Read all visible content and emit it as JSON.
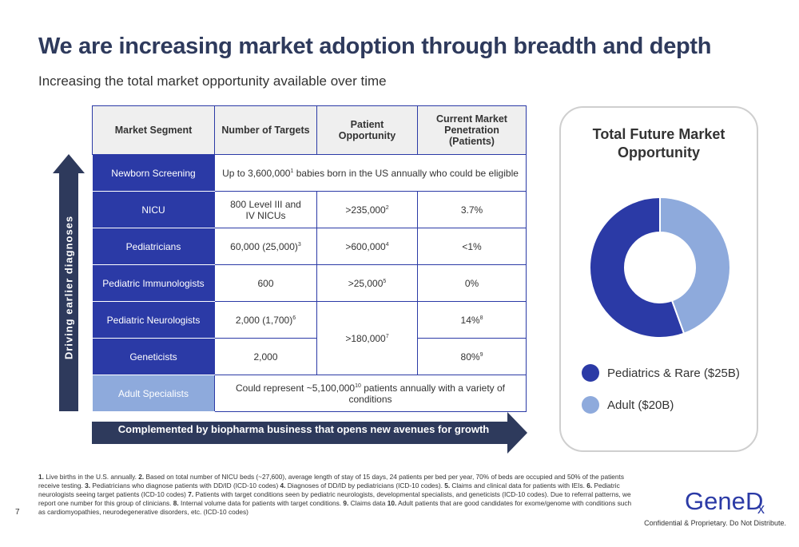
{
  "header": {
    "title": "We are increasing market adoption through breadth and depth",
    "subtitle": "Increasing the total market opportunity available over time"
  },
  "table": {
    "headers": [
      "Market Segment",
      "Number of Targets",
      "Patient Opportunity",
      "Current Market Penetration (Patients)"
    ],
    "newborn": {
      "segment": "Newborn Screening",
      "pre": "Up to 3,600,000",
      "sup": "1",
      "post": " babies born in the US annually who could be eligible"
    },
    "nicu": {
      "segment": "NICU",
      "targets": "800 Level III and IV NICUs",
      "patients": ">235,000",
      "patients_sup": "2",
      "penetration": "3.7%"
    },
    "pediatricians": {
      "segment": "Pediatricians",
      "targets": "60,000 (25,000)",
      "targets_sup": "3",
      "patients": ">600,000",
      "patients_sup": "4",
      "penetration": "<1%"
    },
    "immunologists": {
      "segment": "Pediatric Immunologists",
      "targets": "600",
      "patients": ">25,000",
      "patients_sup": "5",
      "penetration": "0%"
    },
    "neurologists": {
      "segment": "Pediatric Neurologists",
      "targets": "2,000 (1,700)",
      "targets_sup": "6",
      "patients": ">180,000",
      "patients_sup": "7",
      "penetration": "14%",
      "penetration_sup": "8"
    },
    "geneticists": {
      "segment": "Geneticists",
      "targets": "2,000",
      "penetration": "80%",
      "penetration_sup": "9"
    },
    "adult": {
      "segment": "Adult Specialists",
      "pre": "Could represent ~5,100,000",
      "sup": "10",
      "post": " patients annually with a variety of conditions"
    }
  },
  "arrows": {
    "vertical_label": "Driving earlier diagnoses",
    "horizontal_label": "Complemented by biopharma business that opens new avenues for growth"
  },
  "panel": {
    "title": "Total Future Market Opportunity",
    "legend": [
      {
        "label": "Pediatrics & Rare ($25B)",
        "color": "#2b3aa6"
      },
      {
        "label": "Adult ($20B)",
        "color": "#8eaadc"
      }
    ]
  },
  "chart_data": {
    "type": "pie",
    "donut": true,
    "categories": [
      "Pediatrics & Rare",
      "Adult"
    ],
    "values": [
      25,
      20
    ],
    "colors": [
      "#2b3aa6",
      "#8eaadc"
    ],
    "title": "Total Future Market Opportunity",
    "legend": "bottom"
  },
  "footnotes": {
    "parts": [
      [
        "1.",
        " Live births in the U.S. annually. "
      ],
      [
        "2.",
        " Based on total number of NICU beds (~27,600), average length of stay of 15 days, 24 patients per bed per year, 70% of beds are occupied and 50% of the patients receive testing. "
      ],
      [
        "3.",
        " Pediatricians who diagnose patients with DD/ID (ICD-10 codes) "
      ],
      [
        "4.",
        " Diagnoses of DD/ID by pediatricians (ICD-10 codes). "
      ],
      [
        "5.",
        " Claims and clinical data for patients with IEIs. "
      ],
      [
        "6.",
        " Pediatric neurologists seeing target patients (ICD-10 codes) "
      ],
      [
        "7.",
        " Patients with target conditions seen by pediatric neurologists, developmental specialists, and geneticists (ICD-10 codes). Due to referral patterns, we report one number for this group of clinicians. "
      ],
      [
        "8.",
        " Internal volume data for patients with target conditions. "
      ],
      [
        "9.",
        " Claims data "
      ],
      [
        "10.",
        " Adult patients that are good candidates for exome/genome with conditions such as cardiomyopathies, neurodegenerative disorders, etc. (ICD-10 codes)"
      ]
    ]
  },
  "footer": {
    "page_number": "7",
    "logo_text": "GeneDx",
    "confidential": "Confidential & Proprietary. Do Not Distribute."
  }
}
